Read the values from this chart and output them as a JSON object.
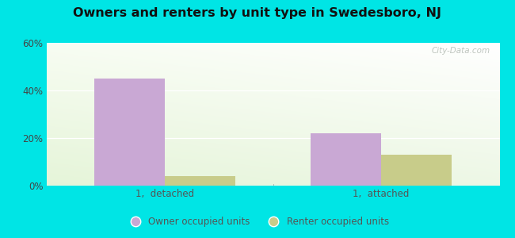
{
  "title": "Owners and renters by unit type in Swedesboro, NJ",
  "categories": [
    "1,  detached",
    "1,  attached"
  ],
  "owner_values": [
    45,
    22
  ],
  "renter_values": [
    4,
    13
  ],
  "owner_color": "#c9a8d4",
  "renter_color": "#c8cc8a",
  "ylim": [
    0,
    60
  ],
  "yticks": [
    0,
    20,
    40,
    60
  ],
  "ytick_labels": [
    "0%",
    "20%",
    "40%",
    "60%"
  ],
  "legend_owner": "Owner occupied units",
  "legend_renter": "Renter occupied units",
  "bg_color": "#00e5e5",
  "watermark": "City-Data.com",
  "bar_width": 0.28,
  "x_positions": [
    0.32,
    1.18
  ]
}
